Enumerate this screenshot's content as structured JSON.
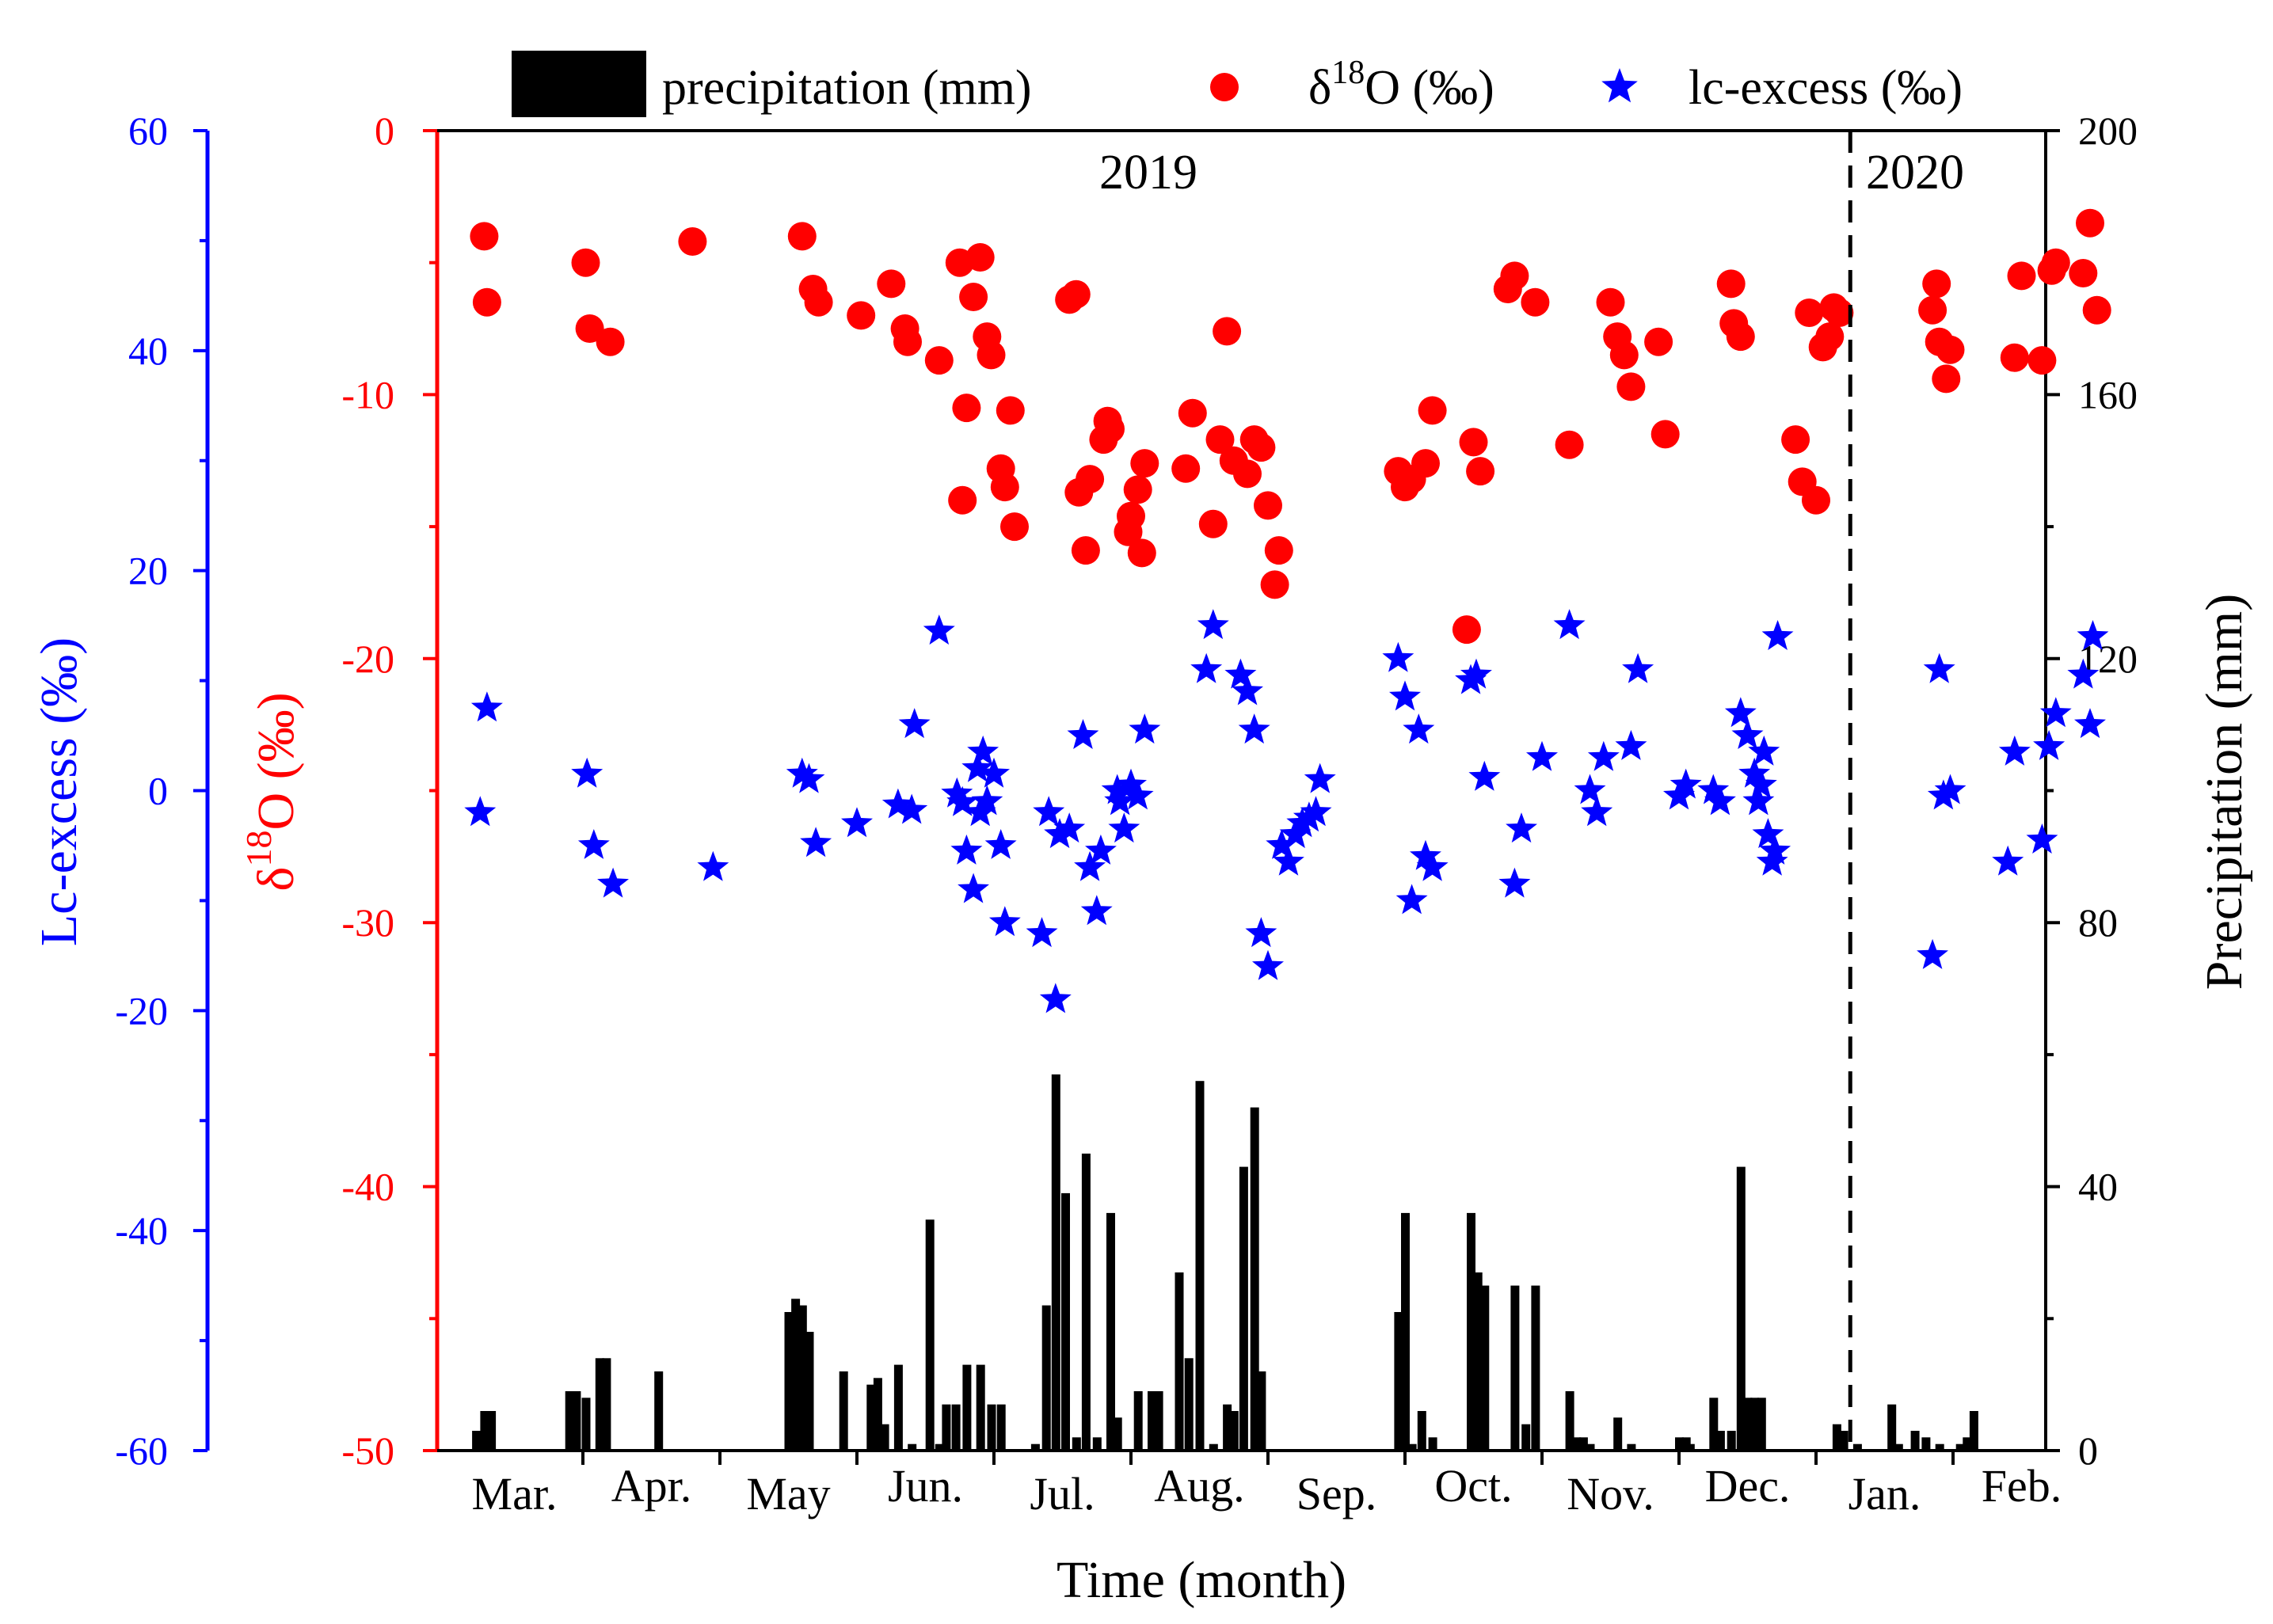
{
  "chart_data": {
    "type": "bar+scatter",
    "x_axis_label": "Time (month)",
    "months": [
      "Mar.",
      "Apr.",
      "May",
      "Jun.",
      "Jul.",
      "Aug.",
      "Sep.",
      "Oct.",
      "Nov.",
      "Dec.",
      "Jan.",
      "Feb."
    ],
    "year_labels": [
      "2019",
      "2020"
    ],
    "axes": {
      "lc_excess": {
        "label": "Lc-excess (‰)",
        "range": [
          -60,
          60
        ],
        "ticks": [
          "60",
          "40",
          "20",
          "0",
          "-20",
          "-40",
          "-60"
        ],
        "color": "#0000ff"
      },
      "d18o": {
        "label_prefix": "δ",
        "label_sup": "18",
        "label_rest": "O (‰)",
        "range": [
          -50,
          0
        ],
        "ticks": [
          "0",
          "-10",
          "-20",
          "-30",
          "-40",
          "-50"
        ],
        "color": "#ff0000"
      },
      "precip": {
        "label": "Precipitation (mm)",
        "range": [
          0,
          200
        ],
        "ticks": [
          "200",
          "160",
          "120",
          "80",
          "40",
          "0"
        ],
        "color": "#000000"
      }
    },
    "legend": {
      "precipitation": "precipitation (mm)",
      "d18o_prefix": "δ",
      "d18o_sup": "18",
      "d18o_rest": "O (‰)",
      "lc_excess": "lc-excess (‰)"
    },
    "series": [
      {
        "name": "precipitation (mm)",
        "axis": "precip",
        "color": "#000000",
        "points": [
          [
            0.22,
            3
          ],
          [
            0.28,
            6
          ],
          [
            0.33,
            6
          ],
          [
            0.9,
            9
          ],
          [
            0.95,
            9
          ],
          [
            1.02,
            8
          ],
          [
            1.12,
            14
          ],
          [
            1.17,
            14
          ],
          [
            1.55,
            12
          ],
          [
            2.5,
            21
          ],
          [
            2.55,
            23
          ],
          [
            2.6,
            22
          ],
          [
            2.65,
            18
          ],
          [
            2.9,
            12
          ],
          [
            3.1,
            10
          ],
          [
            3.15,
            11
          ],
          [
            3.2,
            4
          ],
          [
            3.3,
            13
          ],
          [
            3.4,
            1
          ],
          [
            3.53,
            35
          ],
          [
            3.6,
            1
          ],
          [
            3.65,
            7
          ],
          [
            3.72,
            7
          ],
          [
            3.8,
            13
          ],
          [
            3.9,
            13
          ],
          [
            3.98,
            7
          ],
          [
            4.05,
            7
          ],
          [
            4.3,
            1
          ],
          [
            4.38,
            22
          ],
          [
            4.45,
            57
          ],
          [
            4.52,
            39
          ],
          [
            4.6,
            2
          ],
          [
            4.67,
            45
          ],
          [
            4.75,
            2
          ],
          [
            4.85,
            36
          ],
          [
            4.9,
            5
          ],
          [
            5.05,
            9
          ],
          [
            5.15,
            9
          ],
          [
            5.2,
            9
          ],
          [
            5.35,
            27
          ],
          [
            5.42,
            14
          ],
          [
            5.5,
            56
          ],
          [
            5.6,
            1
          ],
          [
            5.7,
            7
          ],
          [
            5.75,
            6
          ],
          [
            5.82,
            43
          ],
          [
            5.9,
            52
          ],
          [
            5.95,
            12
          ],
          [
            6.95,
            21
          ],
          [
            7.0,
            36
          ],
          [
            7.05,
            1
          ],
          [
            7.12,
            6
          ],
          [
            7.2,
            2
          ],
          [
            7.48,
            36
          ],
          [
            7.53,
            27
          ],
          [
            7.58,
            25
          ],
          [
            7.8,
            25
          ],
          [
            7.88,
            4
          ],
          [
            7.95,
            25
          ],
          [
            8.2,
            9
          ],
          [
            8.25,
            2
          ],
          [
            8.3,
            2
          ],
          [
            8.35,
            1
          ],
          [
            8.55,
            5
          ],
          [
            8.65,
            1
          ],
          [
            9.0,
            2
          ],
          [
            9.05,
            2
          ],
          [
            9.08,
            1
          ],
          [
            9.25,
            8
          ],
          [
            9.3,
            3
          ],
          [
            9.38,
            3
          ],
          [
            9.45,
            43
          ],
          [
            9.5,
            8
          ],
          [
            9.55,
            8
          ],
          [
            9.6,
            8
          ],
          [
            10.15,
            4
          ],
          [
            10.2,
            3
          ],
          [
            10.3,
            1
          ],
          [
            10.55,
            7
          ],
          [
            10.6,
            1
          ],
          [
            10.72,
            3
          ],
          [
            10.8,
            2
          ],
          [
            10.9,
            1
          ],
          [
            11.05,
            1
          ],
          [
            11.1,
            2
          ],
          [
            11.15,
            6
          ]
        ]
      },
      {
        "name": "δ18O (‰)",
        "axis": "d18o",
        "color": "#ff0000",
        "points": [
          [
            0.28,
            -4
          ],
          [
            0.3,
            -6.5
          ],
          [
            1.02,
            -5
          ],
          [
            1.05,
            -7.5
          ],
          [
            1.2,
            -8
          ],
          [
            1.8,
            -4.2
          ],
          [
            2.6,
            -4
          ],
          [
            2.68,
            -6
          ],
          [
            2.72,
            -6.5
          ],
          [
            3.03,
            -7
          ],
          [
            3.25,
            -5.8
          ],
          [
            3.35,
            -7.5
          ],
          [
            3.37,
            -8
          ],
          [
            3.6,
            -8.7
          ],
          [
            3.75,
            -5
          ],
          [
            3.77,
            -14
          ],
          [
            3.8,
            -10.5
          ],
          [
            3.85,
            -6.3
          ],
          [
            3.9,
            -4.8
          ],
          [
            3.95,
            -7.8
          ],
          [
            3.98,
            -8.5
          ],
          [
            4.05,
            -12.8
          ],
          [
            4.08,
            -13.5
          ],
          [
            4.12,
            -10.6
          ],
          [
            4.15,
            -15
          ],
          [
            4.55,
            -6.4
          ],
          [
            4.6,
            -6.2
          ],
          [
            4.62,
            -13.7
          ],
          [
            4.67,
            -15.9
          ],
          [
            4.7,
            -13.2
          ],
          [
            4.8,
            -11.7
          ],
          [
            4.83,
            -11
          ],
          [
            4.85,
            -11.3
          ],
          [
            4.98,
            -15.2
          ],
          [
            5.0,
            -14.6
          ],
          [
            5.05,
            -13.6
          ],
          [
            5.08,
            -16
          ],
          [
            5.1,
            -12.6
          ],
          [
            5.4,
            -12.8
          ],
          [
            5.45,
            -10.7
          ],
          [
            5.6,
            -14.9
          ],
          [
            5.65,
            -11.7
          ],
          [
            5.7,
            -7.6
          ],
          [
            5.75,
            -12.5
          ],
          [
            5.85,
            -13
          ],
          [
            5.9,
            -11.7
          ],
          [
            5.95,
            -12
          ],
          [
            6.0,
            -14.2
          ],
          [
            6.05,
            -17.2
          ],
          [
            6.08,
            -15.9
          ],
          [
            6.95,
            -12.9
          ],
          [
            7.0,
            -13.5
          ],
          [
            7.05,
            -13.2
          ],
          [
            7.15,
            -12.6
          ],
          [
            7.2,
            -10.6
          ],
          [
            7.45,
            -18.9
          ],
          [
            7.5,
            -11.8
          ],
          [
            7.55,
            -12.9
          ],
          [
            7.75,
            -6
          ],
          [
            7.8,
            -5.5
          ],
          [
            7.95,
            -6.5
          ],
          [
            8.2,
            -11.9
          ],
          [
            8.5,
            -6.5
          ],
          [
            8.55,
            -7.8
          ],
          [
            8.6,
            -8.5
          ],
          [
            8.65,
            -9.7
          ],
          [
            8.85,
            -8
          ],
          [
            8.9,
            -11.5
          ],
          [
            9.38,
            -5.8
          ],
          [
            9.4,
            -7.3
          ],
          [
            9.45,
            -7.8
          ],
          [
            9.85,
            -11.7
          ],
          [
            9.9,
            -13.3
          ],
          [
            9.95,
            -6.9
          ],
          [
            10.0,
            -14
          ],
          [
            10.05,
            -8.2
          ],
          [
            10.1,
            -7.8
          ],
          [
            10.13,
            -6.7
          ],
          [
            10.17,
            -6.9
          ],
          [
            10.85,
            -6.8
          ],
          [
            10.88,
            -5.8
          ],
          [
            10.9,
            -8
          ],
          [
            10.95,
            -9.4
          ],
          [
            10.98,
            -8.3
          ],
          [
            11.45,
            -8.6
          ],
          [
            11.5,
            -5.5
          ],
          [
            11.65,
            -8.7
          ],
          [
            11.72,
            -5.3
          ],
          [
            11.75,
            -5
          ],
          [
            11.95,
            -5.4
          ],
          [
            12.0,
            -3.5
          ],
          [
            12.05,
            -6.8
          ]
        ]
      },
      {
        "name": "lc-excess (‰)",
        "axis": "lc_excess",
        "color": "#0000ff",
        "points": [
          [
            0.25,
            -2
          ],
          [
            0.3,
            7.5
          ],
          [
            1.03,
            1.5
          ],
          [
            1.08,
            -5
          ],
          [
            1.22,
            -8.5
          ],
          [
            1.95,
            -7
          ],
          [
            2.6,
            1.5
          ],
          [
            2.65,
            1
          ],
          [
            2.7,
            -4.8
          ],
          [
            3.0,
            -3
          ],
          [
            3.3,
            -1.3
          ],
          [
            3.42,
            6
          ],
          [
            3.4,
            -1.8
          ],
          [
            3.6,
            14.5
          ],
          [
            3.73,
            -0.3
          ],
          [
            3.77,
            -1.1
          ],
          [
            3.8,
            -5.5
          ],
          [
            3.85,
            -9
          ],
          [
            3.88,
            2
          ],
          [
            3.9,
            -2
          ],
          [
            3.92,
            3.5
          ],
          [
            3.95,
            -1
          ],
          [
            4.0,
            1.5
          ],
          [
            4.05,
            -5
          ],
          [
            4.08,
            -12
          ],
          [
            4.35,
            -13
          ],
          [
            4.4,
            -2
          ],
          [
            4.45,
            -19
          ],
          [
            4.48,
            -4
          ],
          [
            4.55,
            -3.5
          ],
          [
            4.65,
            5
          ],
          [
            4.7,
            -7
          ],
          [
            4.75,
            -11
          ],
          [
            4.78,
            -5.5
          ],
          [
            4.9,
            0
          ],
          [
            4.92,
            -1
          ],
          [
            4.95,
            -3.5
          ],
          [
            5.0,
            0.5
          ],
          [
            5.05,
            -0.5
          ],
          [
            5.1,
            5.5
          ],
          [
            5.55,
            11
          ],
          [
            5.6,
            15
          ],
          [
            5.8,
            10.5
          ],
          [
            5.85,
            9
          ],
          [
            5.9,
            5.5
          ],
          [
            5.95,
            -13
          ],
          [
            6.0,
            -16
          ],
          [
            6.1,
            -5
          ],
          [
            6.15,
            -6.5
          ],
          [
            6.2,
            -4
          ],
          [
            6.25,
            -3
          ],
          [
            6.3,
            -2.5
          ],
          [
            6.35,
            -2
          ],
          [
            6.38,
            1
          ],
          [
            6.95,
            12
          ],
          [
            7.0,
            8.5
          ],
          [
            7.05,
            -10
          ],
          [
            7.1,
            5.5
          ],
          [
            7.15,
            -6
          ],
          [
            7.2,
            -7
          ],
          [
            7.48,
            10
          ],
          [
            7.52,
            10.5
          ],
          [
            7.58,
            1.2
          ],
          [
            7.8,
            -8.5
          ],
          [
            7.85,
            -3.5
          ],
          [
            8.0,
            3
          ],
          [
            8.2,
            15
          ],
          [
            8.35,
            0
          ],
          [
            8.4,
            -2
          ],
          [
            8.45,
            3
          ],
          [
            8.65,
            4
          ],
          [
            8.7,
            11
          ],
          [
            9.0,
            -0.5
          ],
          [
            9.05,
            0.5
          ],
          [
            9.25,
            0
          ],
          [
            9.3,
            -1
          ],
          [
            9.45,
            7
          ],
          [
            9.5,
            5
          ],
          [
            9.55,
            1.5
          ],
          [
            9.58,
            -1
          ],
          [
            9.6,
            0.5
          ],
          [
            9.62,
            3.5
          ],
          [
            9.65,
            -4
          ],
          [
            9.68,
            -6.5
          ],
          [
            9.7,
            -5.5
          ],
          [
            9.72,
            14
          ],
          [
            10.85,
            -15
          ],
          [
            10.9,
            11
          ],
          [
            10.93,
            -0.5
          ],
          [
            10.98,
            0
          ],
          [
            11.4,
            -6.5
          ],
          [
            11.45,
            3.5
          ],
          [
            11.65,
            -4.5
          ],
          [
            11.7,
            4
          ],
          [
            11.75,
            7
          ],
          [
            11.95,
            10.5
          ],
          [
            12.0,
            6
          ],
          [
            12.02,
            14
          ]
        ]
      }
    ],
    "divider_x_month": 10.25
  }
}
